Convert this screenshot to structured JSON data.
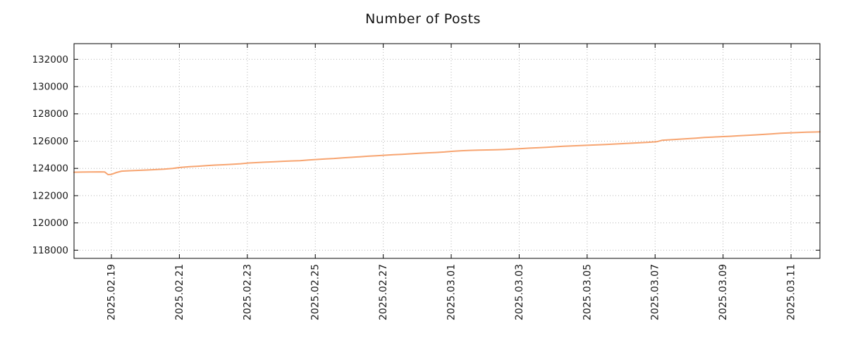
{
  "chart_data": {
    "type": "line",
    "title": "Number of Posts",
    "xlabel": "",
    "ylabel": "",
    "grid": "dotted",
    "legend_position": "none",
    "xlim": [
      -0.1,
      21.85
    ],
    "ylim": [
      117400,
      133150
    ],
    "x_tick_positions": [
      1,
      3,
      5,
      7,
      9,
      11,
      13,
      15,
      17,
      19,
      21
    ],
    "x_tick_labels": [
      "2025.02.19",
      "2025.02.21",
      "2025.02.23",
      "2025.02.25",
      "2025.02.27",
      "2025.03.01",
      "2025.03.03",
      "2025.03.05",
      "2025.03.07",
      "2025.03.09",
      "2025.03.11"
    ],
    "y_ticks": [
      118000,
      120000,
      122000,
      124000,
      126000,
      128000,
      130000,
      132000
    ],
    "series": [
      {
        "name": "number-of-posts",
        "color": "#f7a470",
        "points": [
          [
            -0.1,
            123720
          ],
          [
            0.15,
            123730
          ],
          [
            0.4,
            123740
          ],
          [
            0.65,
            123745
          ],
          [
            0.8,
            123740
          ],
          [
            0.9,
            123545
          ],
          [
            1.0,
            123560
          ],
          [
            1.15,
            123700
          ],
          [
            1.3,
            123800
          ],
          [
            1.55,
            123830
          ],
          [
            1.8,
            123855
          ],
          [
            2.05,
            123880
          ],
          [
            2.3,
            123910
          ],
          [
            2.55,
            123945
          ],
          [
            2.8,
            123995
          ],
          [
            3.05,
            124075
          ],
          [
            3.3,
            124125
          ],
          [
            3.55,
            124160
          ],
          [
            3.8,
            124200
          ],
          [
            4.05,
            124240
          ],
          [
            4.3,
            124270
          ],
          [
            4.55,
            124300
          ],
          [
            4.8,
            124340
          ],
          [
            5.05,
            124395
          ],
          [
            5.3,
            124430
          ],
          [
            5.55,
            124460
          ],
          [
            5.8,
            124490
          ],
          [
            6.05,
            124520
          ],
          [
            6.3,
            124545
          ],
          [
            6.55,
            124570
          ],
          [
            6.8,
            124615
          ],
          [
            7.05,
            124655
          ],
          [
            7.3,
            124695
          ],
          [
            7.55,
            124730
          ],
          [
            7.8,
            124775
          ],
          [
            8.05,
            124810
          ],
          [
            8.3,
            124850
          ],
          [
            8.55,
            124895
          ],
          [
            8.8,
            124930
          ],
          [
            9.05,
            124965
          ],
          [
            9.3,
            125000
          ],
          [
            9.55,
            125030
          ],
          [
            9.8,
            125070
          ],
          [
            10.05,
            125110
          ],
          [
            10.3,
            125140
          ],
          [
            10.55,
            125165
          ],
          [
            10.8,
            125205
          ],
          [
            11.05,
            125255
          ],
          [
            11.3,
            125295
          ],
          [
            11.55,
            125320
          ],
          [
            11.8,
            125335
          ],
          [
            12.05,
            125350
          ],
          [
            12.3,
            125365
          ],
          [
            12.55,
            125385
          ],
          [
            12.8,
            125415
          ],
          [
            13.05,
            125450
          ],
          [
            13.3,
            125485
          ],
          [
            13.55,
            125515
          ],
          [
            13.8,
            125550
          ],
          [
            14.05,
            125585
          ],
          [
            14.3,
            125620
          ],
          [
            14.55,
            125650
          ],
          [
            14.8,
            125680
          ],
          [
            15.05,
            125705
          ],
          [
            15.3,
            125730
          ],
          [
            15.55,
            125755
          ],
          [
            15.8,
            125785
          ],
          [
            16.05,
            125815
          ],
          [
            16.3,
            125850
          ],
          [
            16.55,
            125885
          ],
          [
            16.8,
            125915
          ],
          [
            17.05,
            125955
          ],
          [
            17.2,
            126060
          ],
          [
            17.45,
            126100
          ],
          [
            17.7,
            126140
          ],
          [
            17.95,
            126180
          ],
          [
            18.2,
            126220
          ],
          [
            18.45,
            126265
          ],
          [
            18.7,
            126300
          ],
          [
            18.95,
            126330
          ],
          [
            19.2,
            126355
          ],
          [
            19.45,
            126390
          ],
          [
            19.7,
            126425
          ],
          [
            19.95,
            126460
          ],
          [
            20.2,
            126495
          ],
          [
            20.45,
            126535
          ],
          [
            20.7,
            126575
          ],
          [
            20.95,
            126605
          ],
          [
            21.2,
            126630
          ],
          [
            21.45,
            126655
          ],
          [
            21.7,
            126670
          ],
          [
            21.85,
            126680
          ]
        ]
      }
    ],
    "style": {
      "grid_color": "#b3b3b3",
      "border_color": "#000000",
      "tick_color": "#000000",
      "label_color": "#1a1a1a",
      "line_width": 2
    }
  }
}
